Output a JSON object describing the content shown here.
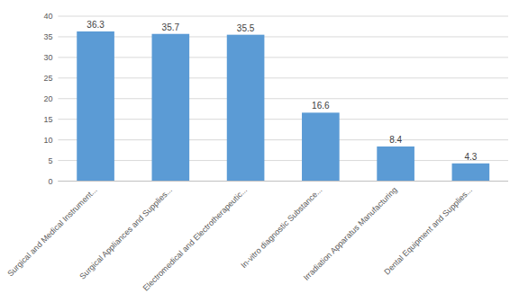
{
  "chart_data": {
    "type": "bar",
    "categories": [
      "Surgical and Medical Instrument...",
      "Surgical Appliances and Supplies...",
      "Electromedical and Electrotherapeutic...",
      "In-vitro diagnostic Substance...",
      "Irradiation Apparatus Manufacturing",
      "Dental Equipment and Supplies..."
    ],
    "values": [
      36.3,
      35.7,
      35.5,
      16.6,
      8.4,
      4.3
    ],
    "color": "#5B9BD5",
    "ylim": [
      0,
      40
    ],
    "yticks": [
      0,
      5,
      10,
      15,
      20,
      25,
      30,
      35,
      40
    ],
    "grid": true,
    "data_labels": true
  }
}
